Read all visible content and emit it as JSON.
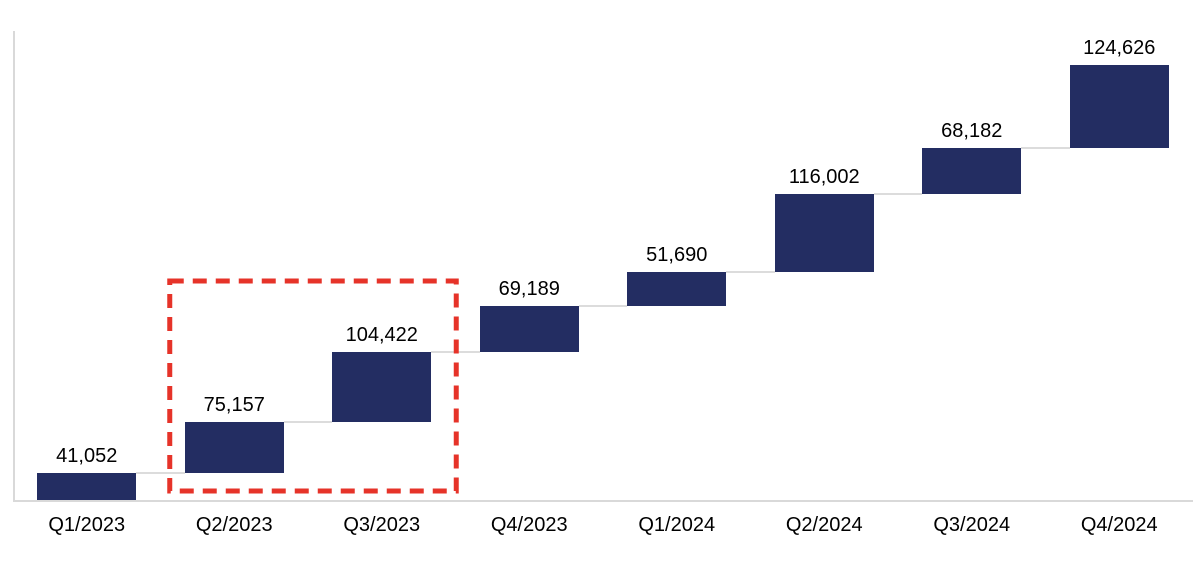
{
  "chart_data": {
    "type": "bar",
    "subtype": "waterfall",
    "title": "",
    "xlabel": "",
    "ylabel": "",
    "grid": false,
    "legend": false,
    "categories": [
      "Q1/2023",
      "Q2/2023",
      "Q3/2023",
      "Q4/2023",
      "Q1/2024",
      "Q2/2024",
      "Q3/2024",
      "Q4/2024"
    ],
    "values": [
      41052,
      75157,
      104422,
      69189,
      51690,
      116002,
      68182,
      124626
    ],
    "value_labels": [
      "41,052",
      "75,157",
      "104,422",
      "69,189",
      "51,690",
      "116,002",
      "68,182",
      "124,626"
    ],
    "cumulative": [
      41052,
      116209,
      220631,
      289820,
      341510,
      457512,
      525694,
      650320
    ],
    "ylim": [
      0,
      650320
    ],
    "colors": {
      "bar": "#232d62",
      "axis": "#d9d9d9",
      "connector": "#dcdcdc",
      "label": "#000000",
      "highlight": "#e63329",
      "background": "#ffffff"
    },
    "highlight": {
      "categories": [
        "Q2/2023",
        "Q3/2023"
      ],
      "style": "red-dashed-rectangle"
    }
  }
}
